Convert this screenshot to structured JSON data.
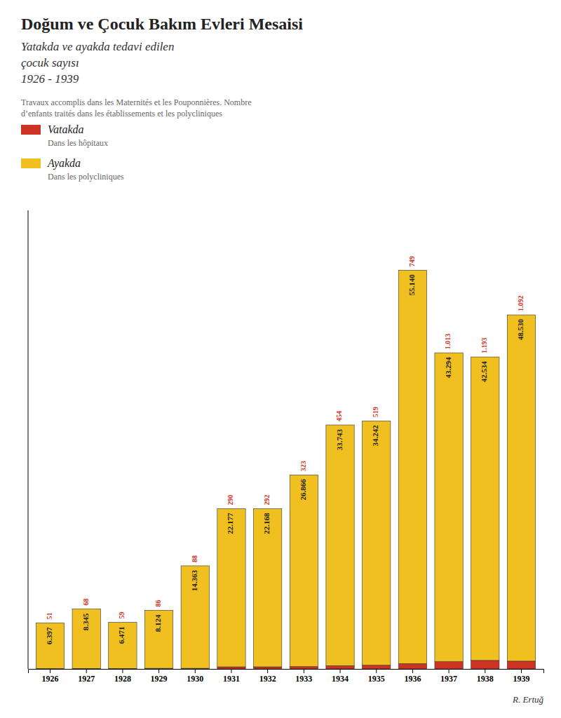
{
  "chart_data": {
    "type": "bar",
    "stacked": true,
    "title": "Doğum ve Çocuk Bakım Evleri Mesaisi",
    "subtitle": [
      "Yatakda ve ayakda tedavi edilen",
      "çocuk sayısı",
      "1926 - 1939"
    ],
    "annotations": [
      "Travaux accomplis dans les Maternités et les Pouponnières.  Nombre",
      "d’enfants traités dans les établissements et les polycliniques",
      "Dans les hôpitaux",
      "Dans les polycliniques",
      "R. Ertuğ"
    ],
    "categories": [
      "1926",
      "1927",
      "1928",
      "1929",
      "1930",
      "1931",
      "1932",
      "1933",
      "1934",
      "1935",
      "1936",
      "1937",
      "1938",
      "1939"
    ],
    "series": [
      {
        "name": "Vatakda",
        "color": "#cc3322",
        "values": [
          51,
          68,
          59,
          86,
          88,
          290,
          292,
          323,
          454,
          519,
          749,
          1013,
          1193,
          1092
        ],
        "value_labels": [
          "51",
          "68",
          "59",
          "86",
          "88",
          "290",
          "292",
          "323",
          "454",
          "519",
          "749",
          "1.013",
          "1.193",
          "1.092"
        ]
      },
      {
        "name": "Ayakda",
        "color": "#f0c020",
        "values": [
          6397,
          8345,
          6471,
          8124,
          14363,
          22177,
          22168,
          26866,
          33743,
          34242,
          55140,
          43294,
          42534,
          48530
        ],
        "value_labels": [
          "6.397",
          "8.345",
          "6.471",
          "8.124",
          "14.363",
          "22.177",
          "22.168",
          "26.866",
          "33.743",
          "34.242",
          "55.140",
          "43.294",
          "42.534",
          "48.530"
        ]
      }
    ],
    "ylim": [
      0,
      64272.35
    ],
    "data_labels": true,
    "tick_labels": "x",
    "legend": "upper left",
    "grid": false
  }
}
